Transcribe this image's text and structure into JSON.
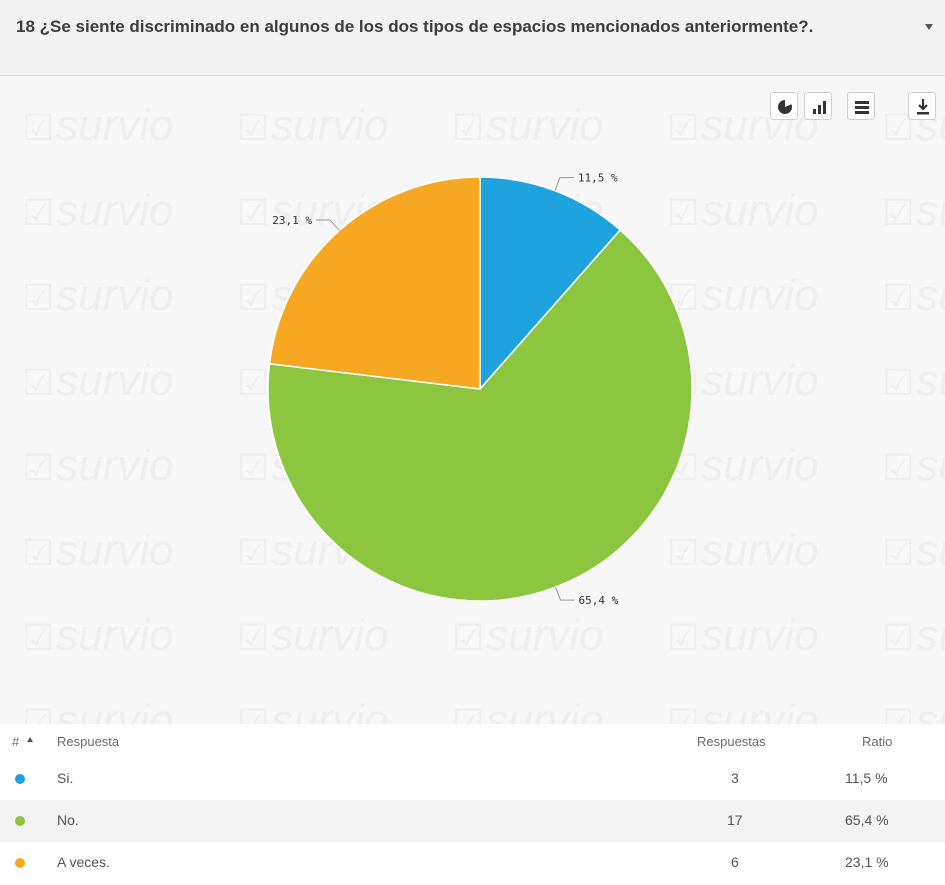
{
  "question": {
    "text": "18 ¿Se siente discriminado en algunos de los dos tipos de espacios mencionados anteriormente?."
  },
  "watermark_text": "survio",
  "toolbar": {
    "buttons": [
      {
        "name": "pie-chart-icon"
      },
      {
        "name": "bar-chart-icon"
      },
      {
        "name": "table-view-icon"
      },
      {
        "name": "download-icon"
      }
    ]
  },
  "chart_data": {
    "type": "pie",
    "categories": [
      "Si.",
      "No.",
      "A veces."
    ],
    "values": [
      11.5,
      65.4,
      23.1
    ],
    "data_labels": [
      "11,5 %",
      "65,4 %",
      "23,1 %"
    ],
    "colors": [
      "#1fa3de",
      "#8cc63f",
      "#f7a823"
    ]
  },
  "table": {
    "headers": {
      "index": "#",
      "answer": "Respuesta",
      "responses": "Respuestas",
      "ratio": "Ratio"
    },
    "rows": [
      {
        "answer": "Si.",
        "count": "3",
        "ratio": "11,5 %",
        "color": "#1fa3de"
      },
      {
        "answer": "No.",
        "count": "17",
        "ratio": "65,4 %",
        "color": "#8cc63f"
      },
      {
        "answer": "A veces.",
        "count": "6",
        "ratio": "23,1 %",
        "color": "#f7a823"
      }
    ]
  }
}
